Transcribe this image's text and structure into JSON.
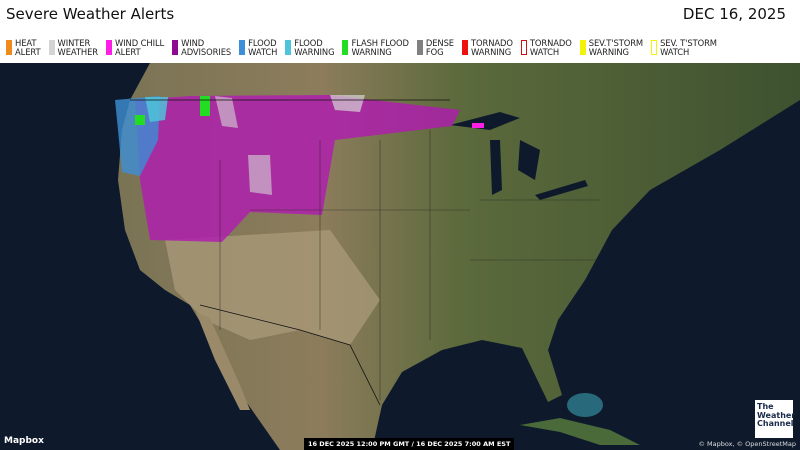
{
  "header": {
    "title": "Severe Weather Alerts",
    "date": "DEC 16, 2025"
  },
  "legend": [
    {
      "label": "HEAT\nALERT",
      "color": "#f08a1c",
      "style": "fill"
    },
    {
      "label": "WINTER\nWEATHER",
      "color": "#d4d4d4",
      "style": "fill"
    },
    {
      "label": "WIND CHILL\nALERT",
      "color": "#ff1ee6",
      "style": "fill"
    },
    {
      "label": "WIND\nADVISORIES",
      "color": "#8e0a8e",
      "style": "fill"
    },
    {
      "label": "FLOOD\nWATCH",
      "color": "#3d8fd6",
      "style": "fill"
    },
    {
      "label": "FLOOD\nWARNING",
      "color": "#4fc3d9",
      "style": "fill"
    },
    {
      "label": "FLASH FLOOD\nWARNING",
      "color": "#22dd22",
      "style": "fill"
    },
    {
      "label": "DENSE\nFOG",
      "color": "#808080",
      "style": "fill"
    },
    {
      "label": "TORNADO\nWARNING",
      "color": "#ee1111",
      "style": "fill"
    },
    {
      "label": "TORNADO\nWATCH",
      "color": "#cc1111",
      "style": "outline"
    },
    {
      "label": "SEV.T'STORM\nWARNING",
      "color": "#f2f20a",
      "style": "fill"
    },
    {
      "label": "SEV. T'STORM\nWATCH",
      "color": "#f2f20a",
      "style": "outline"
    }
  ],
  "map": {
    "provider": "Mapbox",
    "timestamp": "16 DEC 2025 12:00 PM GMT / 16 DEC 2025 7:00 AM EST",
    "attribution": "© Mapbox, © OpenStreetMap",
    "logo": "The Weather Channel"
  }
}
